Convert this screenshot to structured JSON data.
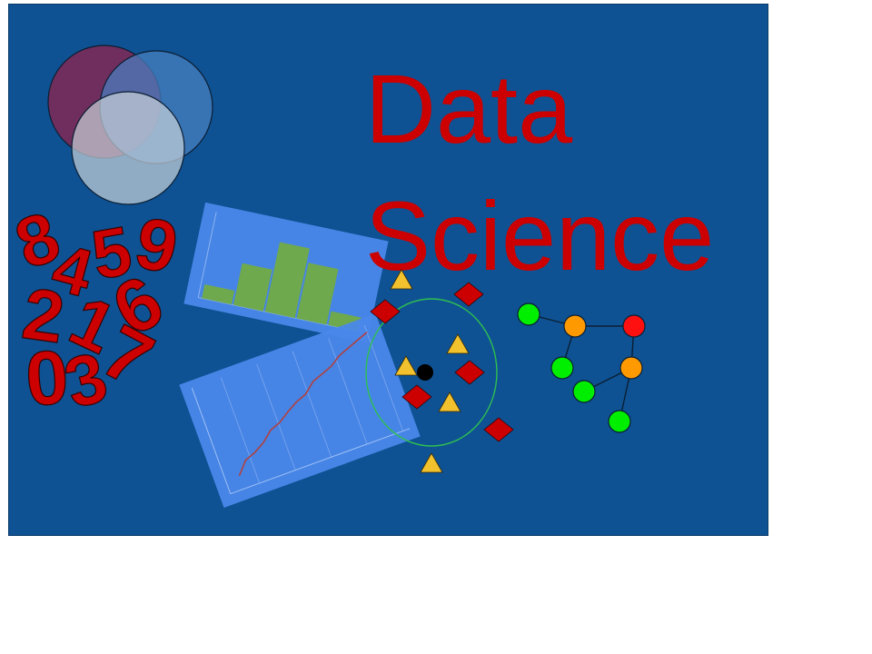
{
  "title": {
    "line1": "Data",
    "line2": "Science"
  },
  "digits": [
    "8",
    "4",
    "5",
    "9",
    "2",
    "1",
    "6",
    "0",
    "3",
    "7"
  ],
  "colors": {
    "background": "#0e5293",
    "title": "#cc0000",
    "panel": "#4a88ea",
    "histogram_bar": "#6fa94d",
    "line_series": "#b04040",
    "triangle": "#f2c12e",
    "diamond": "#cc0000",
    "cluster_ring": "#2fbf50",
    "node_green": "#00ee00",
    "node_orange": "#ff9900",
    "node_red": "#ff1010",
    "venn_1": "#7a2a58",
    "venn_2": "#4a7fc0",
    "venn_3": "#b8c8d0"
  },
  "chart_data": [
    {
      "type": "bar",
      "values": [
        1,
        3,
        5,
        4,
        1
      ],
      "ylim": [
        0,
        6
      ]
    },
    {
      "type": "line",
      "x": [
        0,
        1,
        2,
        3,
        4,
        5,
        6,
        7,
        8,
        9,
        10,
        11,
        12,
        13,
        14,
        15
      ],
      "values": [
        1,
        2.2,
        2.6,
        3.2,
        4.1,
        4.5,
        5.2,
        5.8,
        6.2,
        7.1,
        7.5,
        7.9,
        8.6,
        9.0,
        9.4,
        9.8
      ]
    }
  ]
}
